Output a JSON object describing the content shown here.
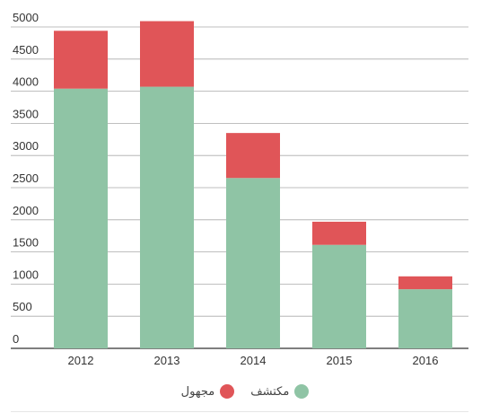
{
  "chart_data": {
    "type": "bar",
    "stacked": true,
    "categories": [
      "2012",
      "2013",
      "2014",
      "2015",
      "2016"
    ],
    "series": [
      {
        "name": "مكتشف",
        "color": "#8fc4a5",
        "values": [
          4040,
          4070,
          2650,
          1610,
          920
        ]
      },
      {
        "name": "مجهول",
        "color": "#e05558",
        "values": [
          900,
          1020,
          700,
          360,
          200
        ]
      }
    ],
    "yticks": [
      "0",
      "500",
      "1000",
      "1500",
      "2000",
      "2500",
      "3000",
      "3500",
      "4000",
      "4500",
      "5000"
    ],
    "ylim": [
      0,
      5000
    ],
    "grid": true,
    "legend_position": "bottom-center",
    "title": "",
    "xlabel": "",
    "ylabel": ""
  }
}
